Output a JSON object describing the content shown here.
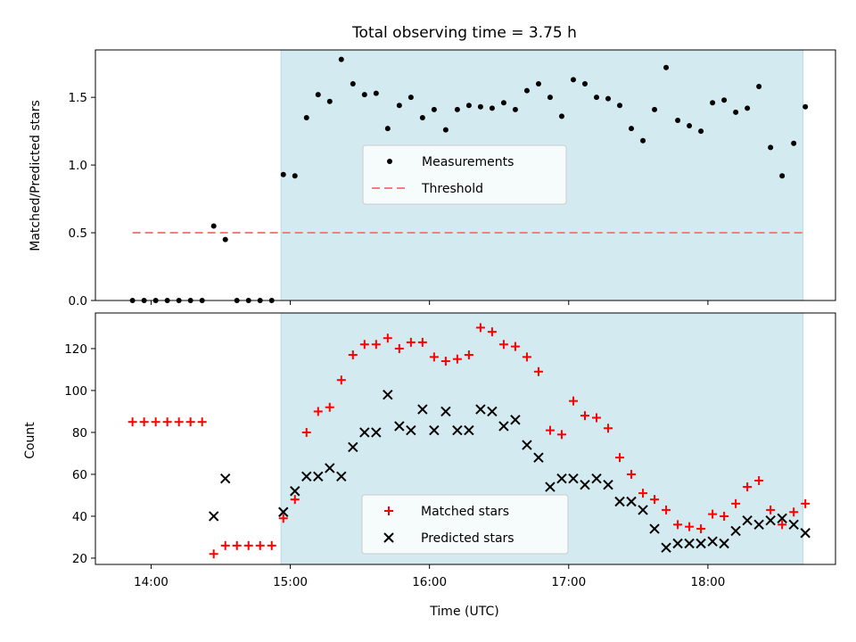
{
  "colors": {
    "shade": "#d3eaf0",
    "measurement": "#000000",
    "threshold": "#f08080",
    "matched": "#ff0000",
    "predicted": "#000000"
  },
  "chart_data": [
    {
      "type": "scatter",
      "title": "Total observing time = 3.75 h",
      "xlabel": "",
      "ylabel": "Matched/Predicted stars",
      "xlim": [
        "13:36",
        "18:55"
      ],
      "ylim": [
        0,
        1.85
      ],
      "yticks": [
        "0.0",
        "0.5",
        "1.0",
        "1.5"
      ],
      "shaded_span": [
        "14:56",
        "18:41"
      ],
      "legend": {
        "placement": "center",
        "entries": [
          "Measurements",
          "Threshold"
        ]
      },
      "threshold": {
        "name": "Threshold",
        "y": 0.5,
        "x_start": "13:52",
        "x_end": "18:41"
      },
      "series": [
        {
          "name": "Measurements",
          "x": [
            "13:52",
            "13:57",
            "14:02",
            "14:07",
            "14:12",
            "14:17",
            "14:22",
            "14:27",
            "14:32",
            "14:37",
            "14:42",
            "14:47",
            "14:52",
            "14:57",
            "15:02",
            "15:07",
            "15:12",
            "15:17",
            "15:22",
            "15:27",
            "15:32",
            "15:37",
            "15:42",
            "15:47",
            "15:52",
            "15:57",
            "16:02",
            "16:07",
            "16:12",
            "16:17",
            "16:22",
            "16:27",
            "16:32",
            "16:37",
            "16:42",
            "16:47",
            "16:52",
            "16:57",
            "17:02",
            "17:07",
            "17:12",
            "17:17",
            "17:22",
            "17:27",
            "17:32",
            "17:37",
            "17:42",
            "17:47",
            "17:52",
            "17:57",
            "18:02",
            "18:07",
            "18:12",
            "18:17",
            "18:22",
            "18:27",
            "18:32",
            "18:37",
            "18:42"
          ],
          "y": [
            0,
            0,
            0,
            0,
            0,
            0,
            0,
            0.55,
            0.45,
            0,
            0,
            0,
            0,
            0.93,
            0.92,
            1.35,
            1.52,
            1.47,
            1.78,
            1.6,
            1.52,
            1.53,
            1.27,
            1.44,
            1.5,
            1.35,
            1.41,
            1.26,
            1.41,
            1.44,
            1.43,
            1.42,
            1.46,
            1.41,
            1.55,
            1.6,
            1.5,
            1.36,
            1.63,
            1.6,
            1.5,
            1.49,
            1.44,
            1.27,
            1.18,
            1.41,
            1.72,
            1.33,
            1.29,
            1.25,
            1.46,
            1.48,
            1.39,
            1.42,
            1.58,
            1.13,
            0.92,
            1.16,
            1.43
          ]
        }
      ]
    },
    {
      "type": "scatter",
      "title": "",
      "xlabel": "Time (UTC)",
      "ylabel": "Count",
      "xlim": [
        "13:36",
        "18:55"
      ],
      "ylim": [
        17,
        137
      ],
      "xticks": [
        "14:00",
        "15:00",
        "16:00",
        "17:00",
        "18:00"
      ],
      "yticks": [
        "20",
        "40",
        "60",
        "80",
        "100",
        "120"
      ],
      "shaded_span": [
        "14:56",
        "18:41"
      ],
      "legend": {
        "placement": "lower center",
        "entries": [
          "Matched stars",
          "Predicted stars"
        ]
      },
      "series": [
        {
          "name": "Matched stars",
          "x": [
            "13:52",
            "13:57",
            "14:02",
            "14:07",
            "14:12",
            "14:17",
            "14:22",
            "14:27",
            "14:32",
            "14:37",
            "14:42",
            "14:47",
            "14:52",
            "14:57",
            "15:02",
            "15:07",
            "15:12",
            "15:17",
            "15:22",
            "15:27",
            "15:32",
            "15:37",
            "15:42",
            "15:47",
            "15:52",
            "15:57",
            "16:02",
            "16:07",
            "16:12",
            "16:17",
            "16:22",
            "16:27",
            "16:32",
            "16:37",
            "16:42",
            "16:47",
            "16:52",
            "16:57",
            "17:02",
            "17:07",
            "17:12",
            "17:17",
            "17:22",
            "17:27",
            "17:32",
            "17:37",
            "17:42",
            "17:47",
            "17:52",
            "17:57",
            "18:02",
            "18:07",
            "18:12",
            "18:17",
            "18:22",
            "18:27",
            "18:32",
            "18:37",
            "18:42"
          ],
          "y": [
            85,
            85,
            85,
            85,
            85,
            85,
            85,
            22,
            26,
            26,
            26,
            26,
            26,
            39,
            48,
            80,
            90,
            92,
            105,
            117,
            122,
            122,
            125,
            120,
            123,
            123,
            116,
            114,
            115,
            117,
            130,
            128,
            122,
            121,
            116,
            109,
            81,
            79,
            95,
            88,
            87,
            82,
            68,
            60,
            51,
            48,
            43,
            36,
            35,
            34,
            41,
            40,
            46,
            54,
            57,
            43,
            36,
            42,
            46
          ]
        },
        {
          "name": "Predicted stars",
          "x": [
            "14:27",
            "14:32",
            "14:57",
            "15:02",
            "15:07",
            "15:12",
            "15:17",
            "15:22",
            "15:27",
            "15:32",
            "15:37",
            "15:42",
            "15:47",
            "15:52",
            "15:57",
            "16:02",
            "16:07",
            "16:12",
            "16:17",
            "16:22",
            "16:27",
            "16:32",
            "16:37",
            "16:42",
            "16:47",
            "16:52",
            "16:57",
            "17:02",
            "17:07",
            "17:12",
            "17:17",
            "17:22",
            "17:27",
            "17:32",
            "17:37",
            "17:42",
            "17:47",
            "17:52",
            "17:57",
            "18:02",
            "18:07",
            "18:12",
            "18:17",
            "18:22",
            "18:27",
            "18:32",
            "18:37",
            "18:42"
          ],
          "y": [
            40,
            58,
            42,
            52,
            59,
            59,
            63,
            59,
            73,
            80,
            80,
            98,
            83,
            81,
            91,
            81,
            90,
            81,
            81,
            91,
            90,
            83,
            86,
            74,
            68,
            54,
            58,
            58,
            55,
            58,
            55,
            47,
            47,
            43,
            34,
            25,
            27,
            27,
            27,
            28,
            27,
            33,
            38,
            36,
            38,
            39,
            36,
            32
          ]
        }
      ]
    }
  ]
}
